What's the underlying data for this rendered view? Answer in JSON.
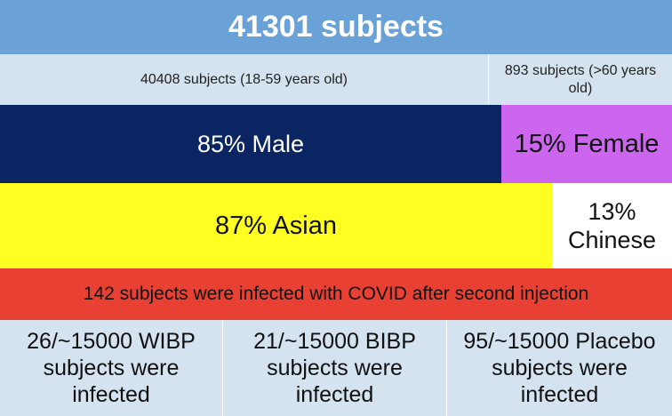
{
  "title": "41301 subjects",
  "age_groups": [
    {
      "label": "40408 subjects (18-59 years old)"
    },
    {
      "label": "893 subjects (>60 years old)"
    }
  ],
  "sex": [
    {
      "label": "85% Male",
      "percent": 85,
      "color": "#0b2562"
    },
    {
      "label": "15% Female",
      "percent": 15,
      "color": "#cc66ee"
    }
  ],
  "ethnicity": [
    {
      "label": "87% Asian",
      "percent": 87,
      "color": "#ffff22"
    },
    {
      "label": "13% Chinese",
      "percent": 13,
      "color": "#ffffff"
    }
  ],
  "infected_summary": "142 subjects were infected with COVID after second injection",
  "results": [
    {
      "label": "26/~15000 WIBP subjects were infected"
    },
    {
      "label": "21/~15000 BIBP subjects were infected"
    },
    {
      "label": "95/~15000 Placebo subjects were infected"
    }
  ],
  "colors": {
    "title_bg": "#6aa1d6",
    "light_bg": "#d5e3f0",
    "infected_bg": "#e84133"
  }
}
